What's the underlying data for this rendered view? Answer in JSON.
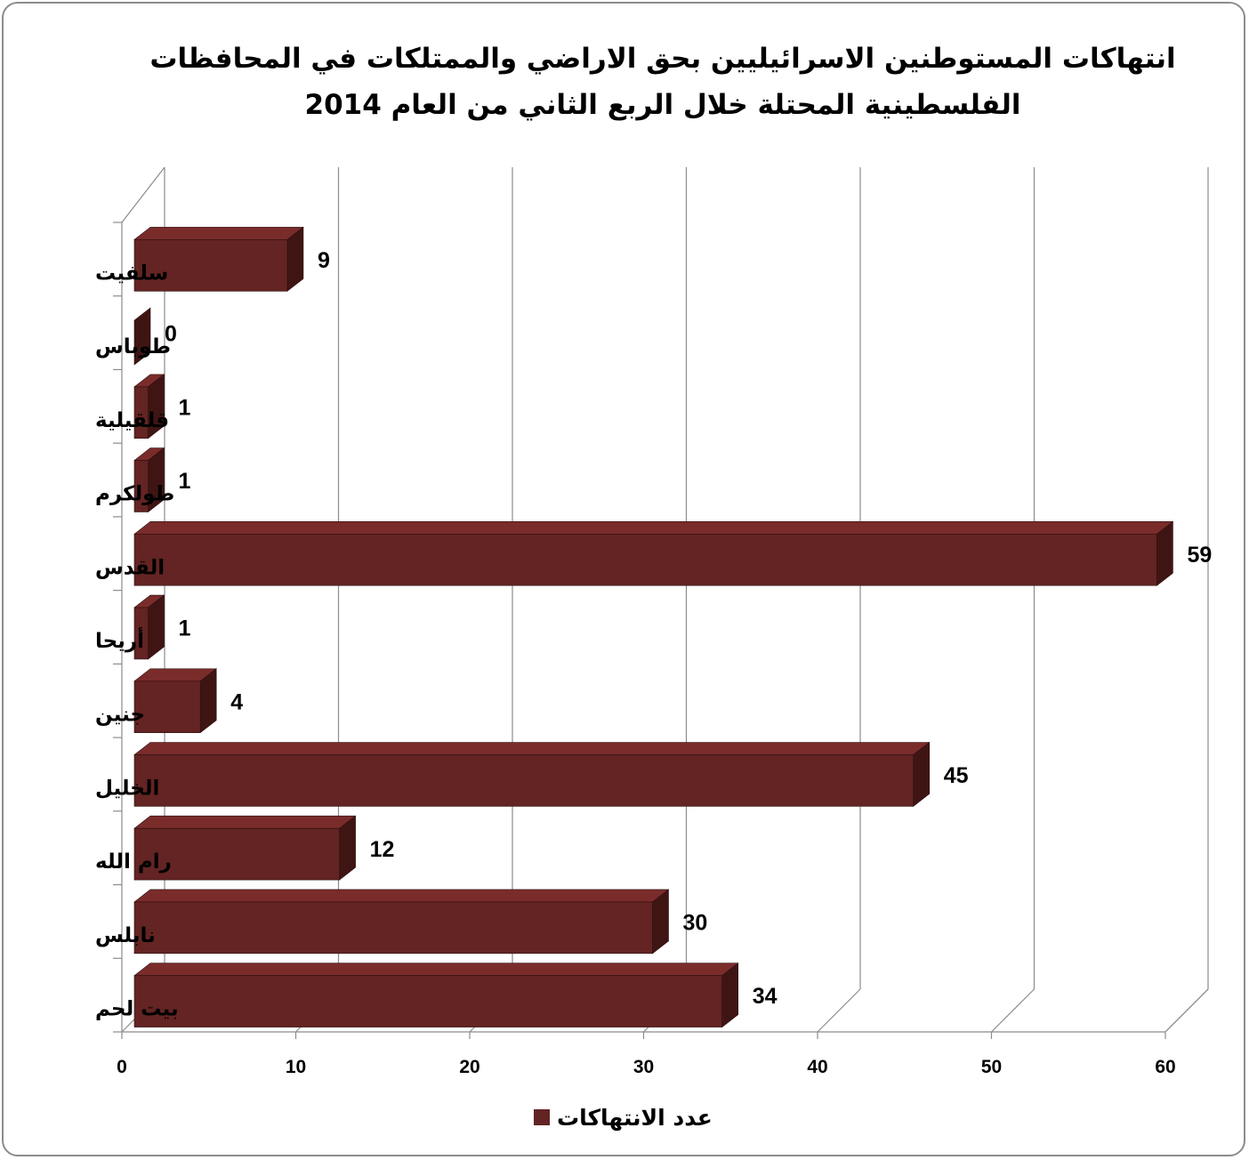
{
  "chart_data": {
    "type": "bar",
    "orientation": "horizontal",
    "style": "3d",
    "title_lines": [
      "انتهاكات المستوطنين الاسرائيليين بحق الاراضي والممتلكات في المحافظات",
      "الفلسطينية المحتلة خلال الربع الثاني من العام 2014"
    ],
    "categories": [
      "سلفيت",
      "طوباس",
      "قلقيلية",
      "طولكرم",
      "القدس",
      "أريحا",
      "جنين",
      "الخليل",
      "رام الله",
      "نابلس",
      "بيت لحم"
    ],
    "series": [
      {
        "name": "عدد الانتهاكات",
        "values": [
          9,
          0,
          1,
          1,
          59,
          1,
          4,
          45,
          12,
          30,
          34
        ],
        "color": "#632423"
      }
    ],
    "xlim": [
      0,
      60
    ],
    "xticks": [
      "0",
      "10",
      "20",
      "30",
      "40",
      "50",
      "60"
    ],
    "grid": true,
    "legend": "bottom",
    "colors": {
      "bar_front": "#632423",
      "bar_top": "#7a2c2b",
      "bar_side": "#3f1514",
      "grid": "#8c8c8c",
      "frame": "#8c8c8c"
    }
  }
}
